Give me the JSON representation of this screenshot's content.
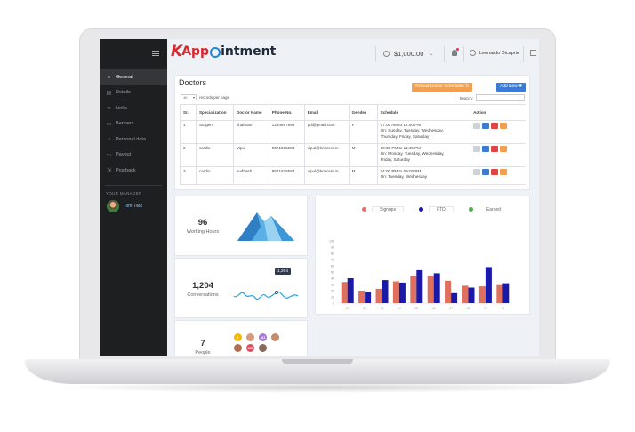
{
  "app": {
    "logo_k": "K",
    "logo_app": "App",
    "logo_rest": "intment"
  },
  "topbar": {
    "balance": "$1,000.00",
    "user_name": "Leonardo Dicaprio"
  },
  "sidebar": {
    "items": [
      {
        "label": "General",
        "icon": "star-icon",
        "active": true
      },
      {
        "label": "Details",
        "icon": "details-icon",
        "active": false
      },
      {
        "label": "Links",
        "icon": "link-icon",
        "active": false
      },
      {
        "label": "Banners",
        "icon": "banner-icon",
        "active": false
      },
      {
        "label": "Personal data",
        "icon": "person-icon",
        "active": false
      },
      {
        "label": "Payout",
        "icon": "payout-icon",
        "active": false
      },
      {
        "label": "Postback",
        "icon": "postback-icon",
        "active": false
      }
    ],
    "manager_title": "YOUR MANAGER",
    "manager_name": "Tom Tilak"
  },
  "doctors": {
    "title": "Doctors",
    "reload_button": "Reload Doctor Schedules ↻",
    "add_button": "Add New ✚",
    "records_value": "10",
    "records_label": "records per page",
    "search_label": "Search:",
    "columns": [
      "Sr.",
      "Specialization",
      "Doctor Name",
      "Phone No.",
      "Email",
      "Gender",
      "Schedule",
      "Action"
    ],
    "rows": [
      {
        "sr": "1",
        "specialization": "Surgen",
        "name": "shabnam",
        "phone": "1234567898",
        "email": "gd@gmail.com",
        "gender": "F",
        "schedule": [
          "07:00 AM to 12:00 PM",
          "On: Sunday, Tuesday, Wednesday,",
          "Thursday, Friday, Saturday"
        ]
      },
      {
        "sr": "2",
        "specialization": "cardio",
        "name": "Vipul",
        "phone": "9571816583",
        "email": "vipul@kriscent.in",
        "gender": "M",
        "schedule": [
          "10:30 PM to 11:45 PM",
          "On: Monday, Tuesday, Wednesday,",
          "Friday, Saturday"
        ]
      },
      {
        "sr": "3",
        "specialization": "cardio",
        "name": "avdhesh",
        "phone": "9571816583",
        "email": "vipul@kriscent.in",
        "gender": "M",
        "schedule": [
          "04:00 PM to 09:00 PM",
          "On: Tuesday, Wednesday"
        ]
      }
    ]
  },
  "stats": {
    "working_hours_value": "96",
    "working_hours_label": "Working Hours",
    "conversations_value": "1,204",
    "conversations_label": "Conversations",
    "conversations_tooltip": "1,204",
    "people_value": "7",
    "people_label": "People",
    "people_avatars": [
      {
        "initials": "1",
        "color": "#f5b800"
      },
      {
        "initials": "",
        "color": "#d99a7a"
      },
      {
        "initials": "MJ",
        "color": "#a57ad8"
      },
      {
        "initials": "",
        "color": "#c98a6a"
      },
      {
        "initials": "",
        "color": "#b07050"
      },
      {
        "initials": "MS",
        "color": "#e8495a"
      },
      {
        "initials": "",
        "color": "#8a6a5a"
      }
    ]
  },
  "chart_data": {
    "type": "bar",
    "legend": [
      "Signups",
      "FTD",
      "Earned"
    ],
    "legend_colors": [
      "#e8705e",
      "#1b1aa8",
      "#4caf50"
    ],
    "ylim": [
      0,
      100
    ],
    "yticks": [
      0,
      10,
      20,
      30,
      40,
      50,
      60,
      70,
      80,
      90,
      100
    ],
    "x_tick_labels": [
      "01",
      "02",
      "03",
      "04",
      "05",
      "06",
      "07",
      "08",
      "09",
      "10"
    ],
    "series": [
      {
        "name": "Signups",
        "color": "#e0705e",
        "values": [
          34,
          20,
          23,
          35,
          44,
          44,
          36,
          28,
          27,
          29
        ]
      },
      {
        "name": "FTD",
        "color": "#1b1aa8",
        "values": [
          40,
          18,
          37,
          33,
          53,
          48,
          16,
          25,
          58,
          32
        ]
      }
    ]
  }
}
